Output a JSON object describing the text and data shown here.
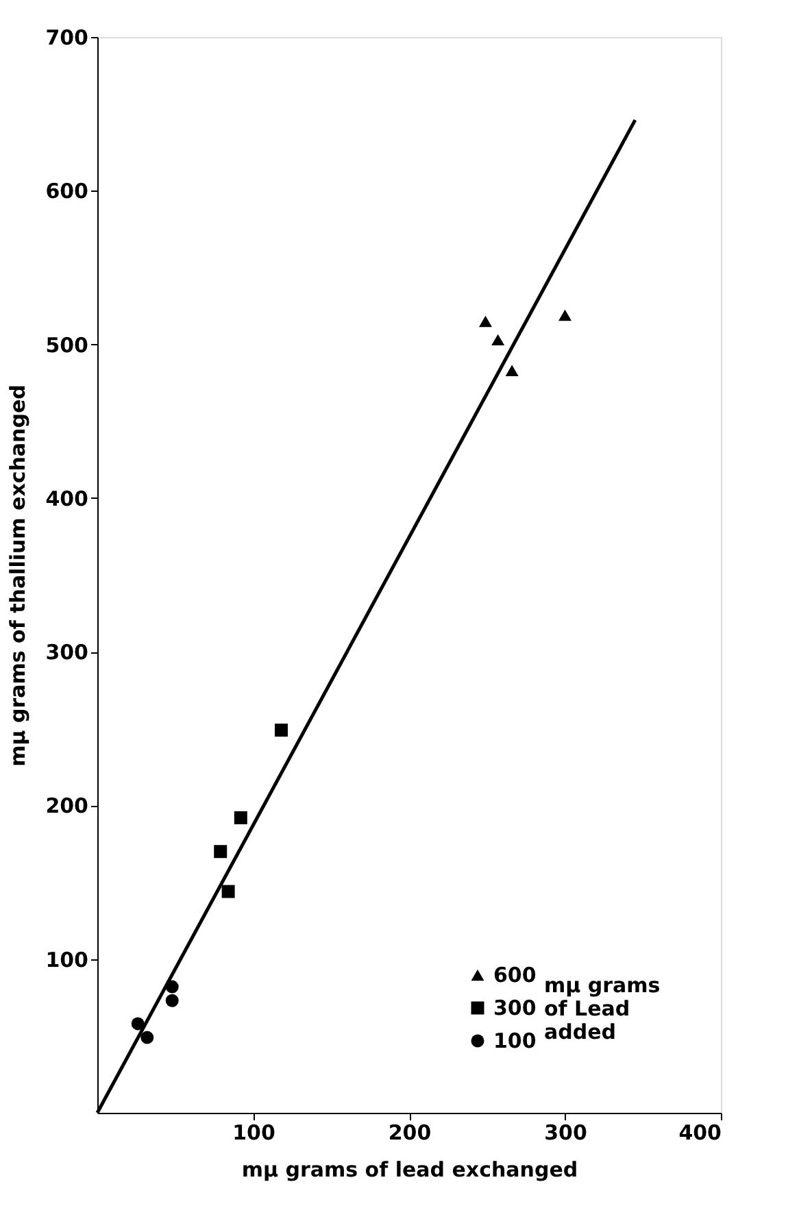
{
  "chart_data": {
    "type": "scatter",
    "xlabel": "mμ grams of lead exchanged",
    "ylabel": "mμ grams of thallium exchanged",
    "legend_title": "mμ grams\nof Lead\nadded",
    "legend": "bottom right",
    "grid": false,
    "xlim": [
      0,
      400
    ],
    "xticks": [
      100,
      200,
      300,
      400
    ],
    "ylim": [
      0,
      700
    ],
    "yticks": [
      100,
      200,
      300,
      400,
      500,
      600,
      700
    ],
    "series": [
      {
        "name": "600",
        "color": "#000000",
        "marker": "triangle",
        "x": [
          249,
          257,
          266,
          300
        ],
        "values": [
          515,
          503,
          483,
          519
        ]
      },
      {
        "name": "300",
        "color": "#000000",
        "marker": "square",
        "x": [
          118,
          92,
          79,
          84
        ],
        "values": [
          249,
          192,
          170,
          144
        ]
      },
      {
        "name": "100",
        "color": "#000000",
        "marker": "circle",
        "x": [
          26,
          32,
          48,
          48
        ],
        "values": [
          58,
          49,
          82,
          73
        ]
      },
      {
        "type": "line",
        "color": "#000000",
        "marker": "none",
        "x": [
          0,
          345
        ],
        "values": [
          0,
          646
        ]
      }
    ]
  }
}
